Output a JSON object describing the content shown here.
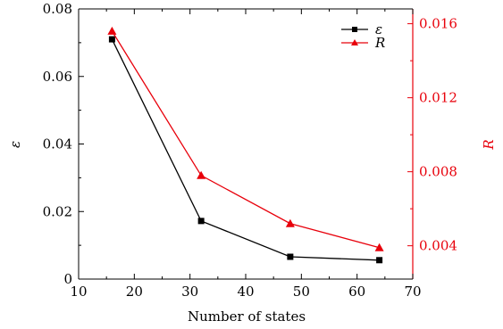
{
  "chart_data": {
    "type": "line",
    "xlabel": "Number of states",
    "ylabel_left": "ε",
    "ylabel_right": "R",
    "xlim": [
      10,
      70
    ],
    "ylim_left": [
      0,
      0.08
    ],
    "ylim_right": [
      0.0022,
      0.0168
    ],
    "x_ticks": [
      10,
      20,
      30,
      40,
      50,
      60,
      70
    ],
    "y_left_ticks": [
      0,
      0.02,
      0.04,
      0.06,
      0.08
    ],
    "y_left_tick_labels": [
      "0",
      "0.02",
      "0.04",
      "0.06",
      "0.08"
    ],
    "y_right_ticks": [
      0.004,
      0.008,
      0.012,
      0.016
    ],
    "y_right_tick_labels": [
      "0.004",
      "0.008",
      "0.012",
      "0.016"
    ],
    "legend_position": "top-right",
    "x": [
      16,
      32,
      48,
      64
    ],
    "series": [
      {
        "name": "ε",
        "axis": "left",
        "marker": "square",
        "color": "#000000",
        "values": [
          0.071,
          0.0172,
          0.0066,
          0.0056
        ]
      },
      {
        "name": "R",
        "axis": "right",
        "marker": "triangle",
        "color": "#e8000b",
        "values": [
          0.0156,
          0.0078,
          0.0052,
          0.0039
        ]
      }
    ],
    "grid": false
  }
}
